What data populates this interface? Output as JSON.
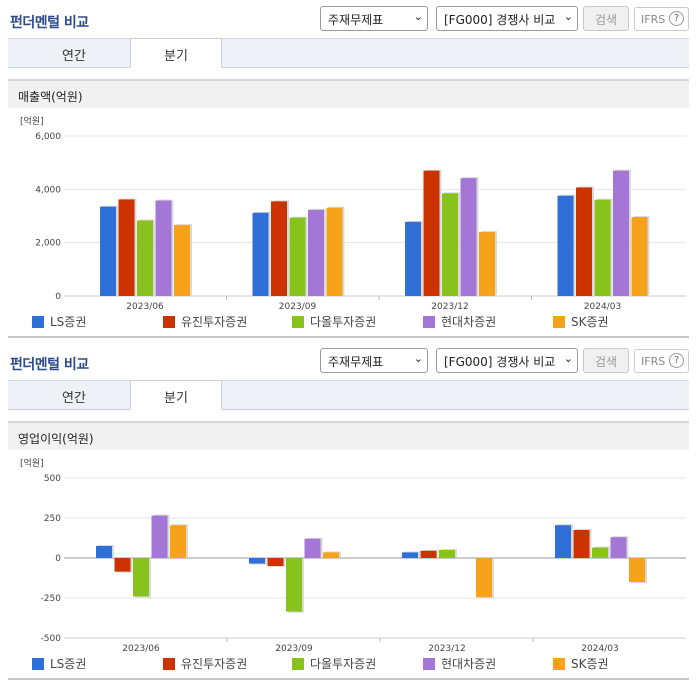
{
  "panels": [
    {
      "title": "펀더멘털 비교",
      "select1": "주재무제표",
      "select2": "[FG000] 경쟁사 비교",
      "search_label": "검색",
      "ifrs_label": "IFRS",
      "help_icon": "?",
      "tabs": [
        "연간",
        "분기"
      ],
      "active_tab": 1,
      "subtitle": "매출액(억원)"
    },
    {
      "title": "펀더멘털 비교",
      "select1": "주재무제표",
      "select2": "[FG000] 경쟁사 비교",
      "search_label": "검색",
      "ifrs_label": "IFRS",
      "help_icon": "?",
      "tabs": [
        "연간",
        "분기"
      ],
      "active_tab": 1,
      "subtitle": "영업이익(억원)"
    }
  ],
  "chart_data": [
    {
      "type": "bar",
      "unit_label": "[억원]",
      "categories": [
        "2023/06",
        "2023/09",
        "2023/12",
        "2024/03"
      ],
      "ylim": [
        0,
        6000
      ],
      "yticks": [
        0,
        2000,
        4000,
        6000
      ],
      "ytick_labels": [
        "0",
        "2,000",
        "4,000",
        "6,000"
      ],
      "legend_position": "bottom",
      "series": [
        {
          "name": "LS증권",
          "color": "#2e6fd8",
          "values": [
            3350,
            3120,
            2780,
            3760
          ]
        },
        {
          "name": "유진투자증권",
          "color": "#cc3300",
          "values": [
            3620,
            3550,
            4700,
            4070
          ]
        },
        {
          "name": "다올투자증권",
          "color": "#88c21d",
          "values": [
            2830,
            2940,
            3850,
            3610
          ]
        },
        {
          "name": "현대차증권",
          "color": "#a476d6",
          "values": [
            3580,
            3230,
            4420,
            4700
          ]
        },
        {
          "name": "SK증권",
          "color": "#f7a21b",
          "values": [
            2660,
            3310,
            2400,
            2960
          ]
        }
      ]
    },
    {
      "type": "bar",
      "unit_label": "[억원]",
      "categories": [
        "2023/06",
        "2023/09",
        "2023/12",
        "2024/03"
      ],
      "ylim": [
        -500,
        500
      ],
      "yticks": [
        -500,
        -250,
        0,
        250,
        500
      ],
      "ytick_labels": [
        "-500",
        "-250",
        "0",
        "250",
        "500"
      ],
      "legend_position": "bottom",
      "series": [
        {
          "name": "LS증권",
          "color": "#2e6fd8",
          "values": [
            75,
            -35,
            35,
            205
          ]
        },
        {
          "name": "유진투자증권",
          "color": "#cc3300",
          "values": [
            -85,
            -50,
            45,
            175
          ]
        },
        {
          "name": "다올투자증권",
          "color": "#88c21d",
          "values": [
            -240,
            -335,
            50,
            65
          ]
        },
        {
          "name": "현대차증권",
          "color": "#a476d6",
          "values": [
            265,
            120,
            0,
            130
          ]
        },
        {
          "name": "SK증권",
          "color": "#f7a21b",
          "values": [
            205,
            35,
            -245,
            -150
          ]
        }
      ]
    }
  ]
}
